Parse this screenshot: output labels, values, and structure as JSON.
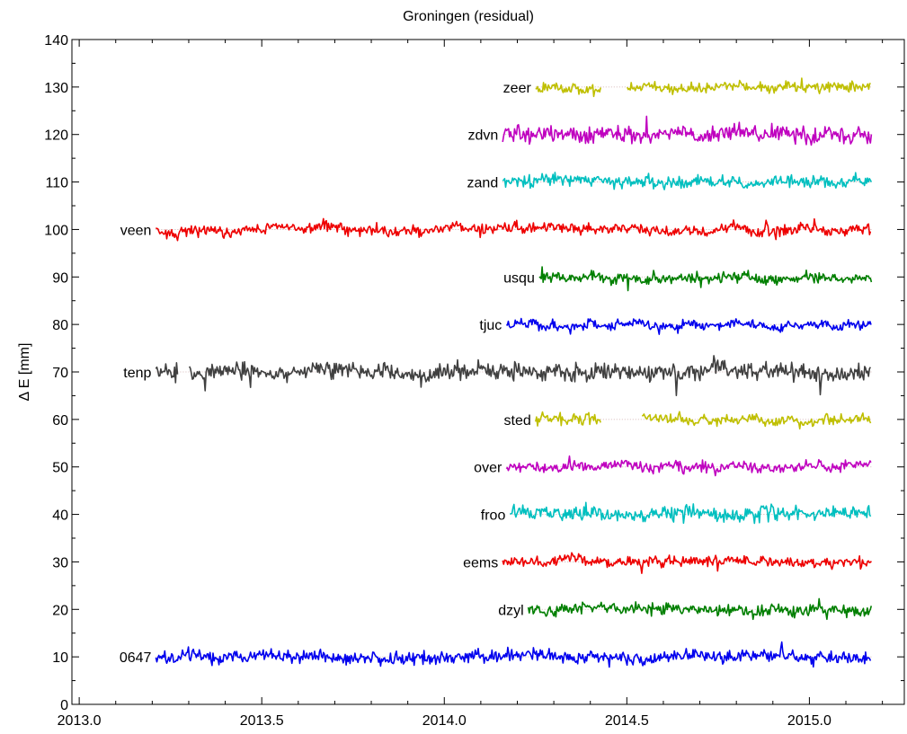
{
  "chart_data": {
    "type": "line",
    "title": "Groningen (residual)",
    "xlabel": "",
    "ylabel": "Δ E [mm]",
    "xlim": [
      2012.98,
      2015.26
    ],
    "ylim": [
      0,
      140
    ],
    "xticks": [
      2013.0,
      2013.5,
      2014.0,
      2014.5,
      2015.0
    ],
    "xtick_labels": [
      "2013.0",
      "2013.5",
      "2014.0",
      "2014.5",
      "2015.0"
    ],
    "yticks": [
      0,
      10,
      20,
      30,
      40,
      50,
      60,
      70,
      80,
      90,
      100,
      110,
      120,
      130,
      140
    ],
    "ytick_labels": [
      "0",
      "10",
      "20",
      "30",
      "40",
      "50",
      "60",
      "70",
      "80",
      "90",
      "100",
      "110",
      "120",
      "130",
      "140"
    ],
    "grid": false,
    "legend": "none",
    "series": [
      {
        "name": "0647",
        "offset": 10,
        "start": 2013.21,
        "end": 2015.17,
        "color": "#0000ee",
        "amp": 1.2,
        "gaps": []
      },
      {
        "name": "dzyl",
        "offset": 20,
        "start": 2014.23,
        "end": 2015.17,
        "color": "#007f00",
        "amp": 1.1,
        "gaps": []
      },
      {
        "name": "eems",
        "offset": 30,
        "start": 2014.16,
        "end": 2015.17,
        "color": "#ee0000",
        "amp": 1.0,
        "gaps": []
      },
      {
        "name": "froo",
        "offset": 40,
        "start": 2014.18,
        "end": 2015.17,
        "color": "#00bfbf",
        "amp": 1.3,
        "gaps": []
      },
      {
        "name": "over",
        "offset": 50,
        "start": 2014.17,
        "end": 2015.17,
        "color": "#bf00bf",
        "amp": 1.0,
        "gaps": []
      },
      {
        "name": "sted",
        "offset": 60,
        "start": 2014.25,
        "end": 2015.17,
        "color": "#bfbf00",
        "amp": 1.0,
        "gaps": [
          [
            2014.43,
            2014.54
          ]
        ]
      },
      {
        "name": "tenp",
        "offset": 70,
        "start": 2013.21,
        "end": 2015.17,
        "color": "#404040",
        "amp": 1.6,
        "gaps": [
          [
            2013.27,
            2013.3
          ]
        ]
      },
      {
        "name": "tjuc",
        "offset": 80,
        "start": 2014.17,
        "end": 2015.17,
        "color": "#0000ee",
        "amp": 0.9,
        "gaps": []
      },
      {
        "name": "usqu",
        "offset": 90,
        "start": 2014.26,
        "end": 2015.17,
        "color": "#007f00",
        "amp": 1.0,
        "gaps": []
      },
      {
        "name": "veen",
        "offset": 100,
        "start": 2013.21,
        "end": 2015.17,
        "color": "#ee0000",
        "amp": 1.0,
        "gaps": []
      },
      {
        "name": "zand",
        "offset": 110,
        "start": 2014.16,
        "end": 2015.17,
        "color": "#00bfbf",
        "amp": 1.1,
        "gaps": []
      },
      {
        "name": "zdvn",
        "offset": 120,
        "start": 2014.16,
        "end": 2015.17,
        "color": "#bf00bf",
        "amp": 1.6,
        "gaps": []
      },
      {
        "name": "zeer",
        "offset": 130,
        "start": 2014.25,
        "end": 2015.17,
        "color": "#bfbf00",
        "amp": 1.0,
        "gaps": [
          [
            2014.43,
            2014.5
          ]
        ]
      }
    ]
  }
}
